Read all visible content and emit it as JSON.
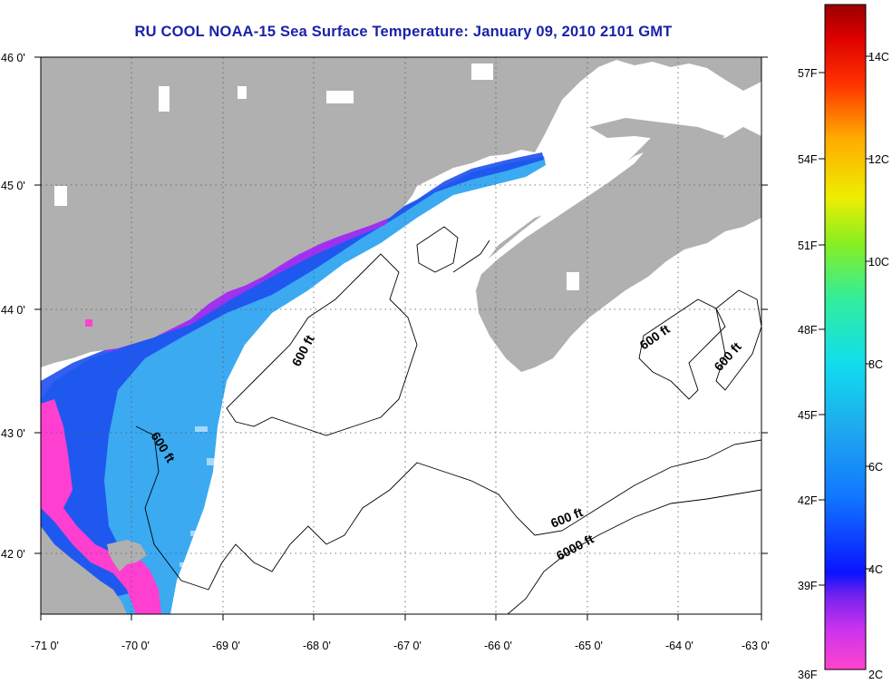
{
  "title": "RU COOL  NOAA-15  Sea Surface Temperature:  January 09, 2010 2101 GMT",
  "axes": {
    "lon_ticks": [
      "-71 0'",
      "-70 0'",
      "-69 0'",
      "-68 0'",
      "-67 0'",
      "-66 0'",
      "-65 0'",
      "-64 0'",
      "-63 0'"
    ],
    "lat_ticks": [
      "46 0'",
      "45 0'",
      "44 0'",
      "43 0'",
      "42 0'"
    ]
  },
  "contour_labels": [
    "600 ft",
    "600 ft",
    "600 ft",
    "600 ft",
    "600 ft",
    "6000 ft"
  ],
  "colorbar": {
    "fahrenheit": [
      "57F",
      "54F",
      "51F",
      "48F",
      "45F",
      "42F",
      "39F",
      "36F"
    ],
    "celsius": [
      "14C",
      "12C",
      "10C",
      "8C",
      "6C",
      "4C",
      "2C"
    ]
  },
  "colors": {
    "land": "#b0b0b0",
    "title": "#1a22a8",
    "water_no_data": "#ffffff"
  }
}
